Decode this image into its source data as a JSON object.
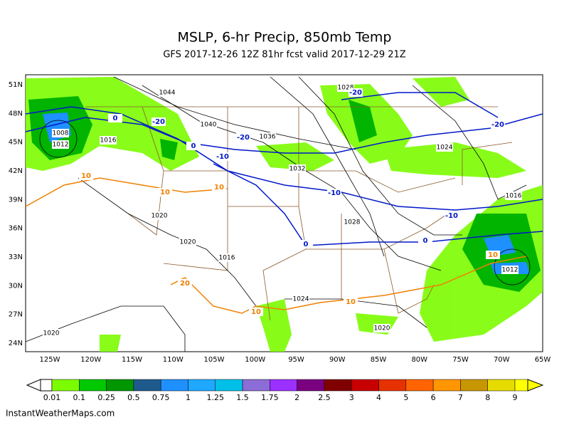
{
  "header": {
    "title": "MSLP, 6-hr Precip, 850mb Temp",
    "subtitle": "GFS 2017-12-26 12Z 81hr fcst valid 2017-12-29 21Z"
  },
  "map": {
    "lat_labels": [
      "51N",
      "48N",
      "45N",
      "42N",
      "39N",
      "36N",
      "33N",
      "30N",
      "27N",
      "24N"
    ],
    "lon_labels": [
      "125W",
      "120W",
      "115W",
      "110W",
      "105W",
      "100W",
      "95W",
      "90W",
      "85W",
      "80W",
      "75W",
      "70W",
      "65W"
    ],
    "isobar_labels": [
      "1044",
      "1040",
      "1036",
      "1032",
      "1028",
      "1024",
      "1016",
      "1028",
      "1024",
      "1020",
      "1016",
      "1020",
      "1020",
      "1016",
      "1008",
      "1012",
      "1012",
      "1020"
    ],
    "temperature_labels": [
      "-20",
      "-20",
      "-20",
      "-20",
      "-10",
      "-10",
      "-10",
      "0",
      "0",
      "0",
      "0",
      "10",
      "10",
      "10",
      "10",
      "10",
      "10",
      "20"
    ]
  },
  "colorbar": {
    "labels": [
      "0.01",
      "0.1",
      "0.25",
      "0.5",
      "0.75",
      "1",
      "1.25",
      "1.5",
      "1.75",
      "2",
      "2.5",
      "3",
      "4",
      "5",
      "6",
      "7",
      "8",
      "9"
    ]
  },
  "footer": {
    "credit": "InstantWeatherMaps.com"
  }
}
